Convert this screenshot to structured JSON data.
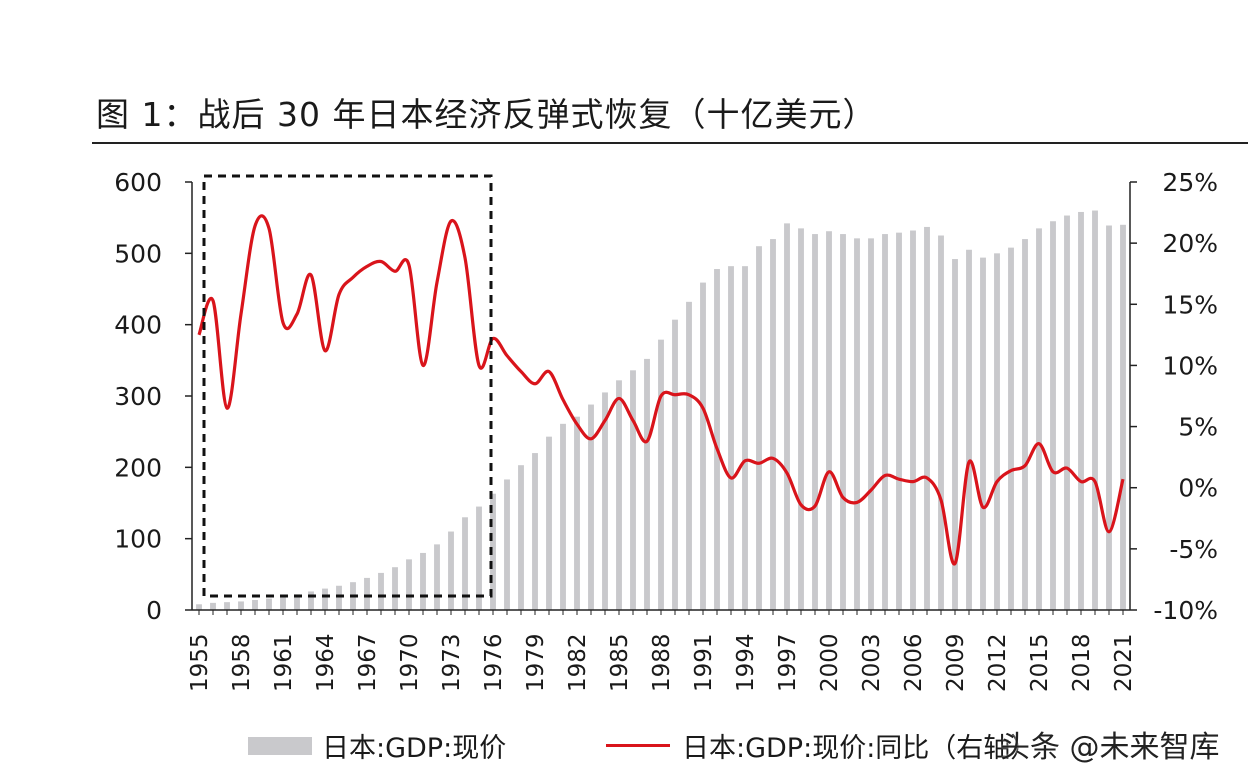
{
  "title": "图 1：战后 30 年日本经济反弹式恢复（十亿美元）",
  "legend": {
    "bar_label": "日本:GDP:现价",
    "line_label": "日本:GDP:现价:同比（右轴）"
  },
  "watermark": "头条 @未来智库",
  "colors": {
    "bar": "#c9c9cc",
    "line": "#d9141b",
    "axis": "#222222",
    "box": "#111111"
  },
  "chart_data": {
    "type": "bar+line",
    "categories": [
      1955,
      1956,
      1957,
      1958,
      1959,
      1960,
      1961,
      1962,
      1963,
      1964,
      1965,
      1966,
      1967,
      1968,
      1969,
      1970,
      1971,
      1972,
      1973,
      1974,
      1975,
      1976,
      1977,
      1978,
      1979,
      1980,
      1981,
      1982,
      1983,
      1984,
      1985,
      1986,
      1987,
      1988,
      1989,
      1990,
      1991,
      1992,
      1993,
      1994,
      1995,
      1996,
      1997,
      1998,
      1999,
      2000,
      2001,
      2002,
      2003,
      2004,
      2005,
      2006,
      2007,
      2008,
      2009,
      2010,
      2011,
      2012,
      2013,
      2014,
      2015,
      2016,
      2017,
      2018,
      2019,
      2020,
      2021
    ],
    "x_tick_labels": [
      "1955",
      "1958",
      "1961",
      "1964",
      "1967",
      "1970",
      "1973",
      "1976",
      "1979",
      "1982",
      "1985",
      "1988",
      "1991",
      "1994",
      "1997",
      "2000",
      "2003",
      "2006",
      "2009",
      "2012",
      "2015",
      "2018",
      "2021"
    ],
    "left_axis": {
      "ylim": [
        0,
        600
      ],
      "ticks": [
        "0",
        "100",
        "200",
        "300",
        "400",
        "500",
        "600"
      ]
    },
    "right_axis": {
      "ylim": [
        -0.1,
        0.25
      ],
      "ticks": [
        "-10%",
        "-5%",
        "0%",
        "5%",
        "10%",
        "15%",
        "20%",
        "25%"
      ]
    },
    "series": [
      {
        "name": "日本:GDP:现价",
        "type": "bar",
        "axis": "left",
        "values": [
          8,
          10,
          11,
          12,
          14,
          16,
          20,
          22,
          26,
          30,
          34,
          39,
          45,
          52,
          60,
          71,
          80,
          92,
          110,
          130,
          145,
          163,
          183,
          203,
          220,
          243,
          261,
          271,
          288,
          305,
          322,
          336,
          352,
          379,
          407,
          432,
          459,
          478,
          482,
          482,
          510,
          520,
          542,
          535,
          527,
          531,
          527,
          521,
          521,
          527,
          529,
          532,
          537,
          525,
          492,
          505,
          494,
          500,
          508,
          520,
          535,
          545,
          553,
          558,
          560,
          539,
          540
        ]
      },
      {
        "name": "日本:GDP:现价:同比",
        "type": "line",
        "axis": "right",
        "values": [
          0.125,
          0.153,
          0.065,
          0.142,
          0.214,
          0.212,
          0.135,
          0.142,
          0.174,
          0.112,
          0.158,
          0.172,
          0.181,
          0.185,
          0.177,
          0.182,
          0.1,
          0.168,
          0.218,
          0.188,
          0.1,
          0.122,
          0.108,
          0.095,
          0.085,
          0.095,
          0.072,
          0.052,
          0.04,
          0.055,
          0.073,
          0.055,
          0.038,
          0.075,
          0.076,
          0.076,
          0.065,
          0.032,
          0.008,
          0.022,
          0.02,
          0.024,
          0.012,
          -0.014,
          -0.015,
          0.013,
          -0.008,
          -0.012,
          -0.002,
          0.01,
          0.007,
          0.005,
          0.008,
          -0.01,
          -0.062,
          0.021,
          -0.016,
          0.005,
          0.014,
          0.018,
          0.036,
          0.013,
          0.016,
          0.005,
          0.005,
          -0.036,
          0.007
        ]
      }
    ],
    "annotation": {
      "type": "dashed-box",
      "x_range": [
        1955,
        1976
      ]
    }
  }
}
